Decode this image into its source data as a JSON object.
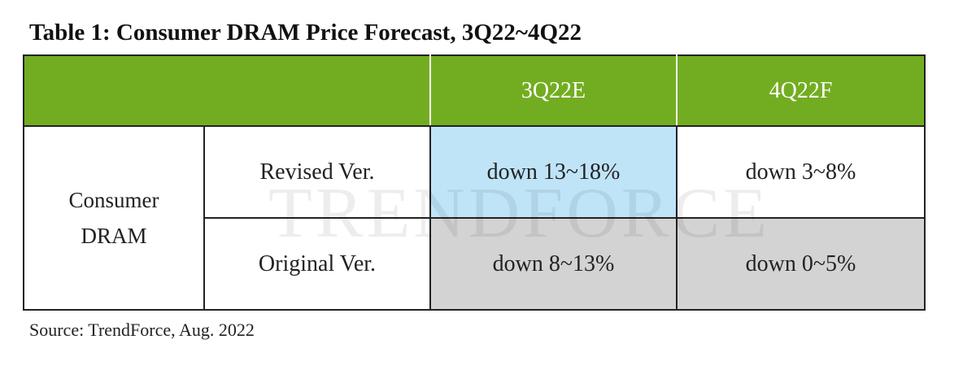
{
  "title": "Table 1: Consumer DRAM Price Forecast, 3Q22~4Q22",
  "table": {
    "header": [
      "3Q22E",
      "4Q22F"
    ],
    "row_group": "Consumer DRAM",
    "rows": [
      [
        "Revised Ver.",
        "down 13~18%",
        "down 3~8%"
      ],
      [
        "Original Ver.",
        "down 8~13%",
        "down 0~5%"
      ]
    ]
  },
  "watermark": "TRENDFORCE",
  "source": "Source: TrendForce, Aug. 2022"
}
